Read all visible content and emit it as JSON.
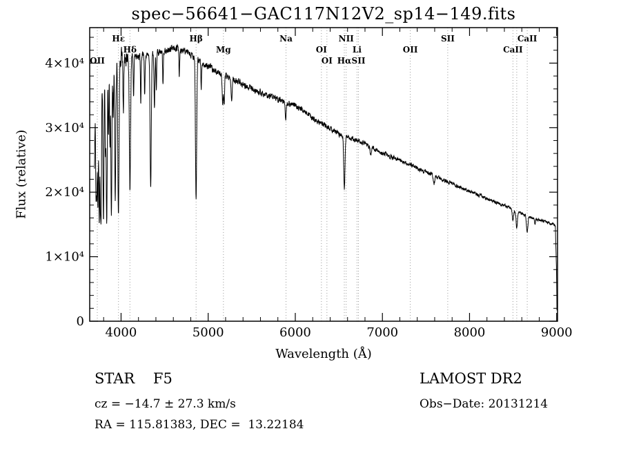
{
  "footer": {
    "class_label": "STAR    F5",
    "survey": "LAMOST DR2",
    "cz": "cz = −14.7 ± 27.3 km/s",
    "obs_date": "Obs−Date: 20131214",
    "coords": "RA = 115.81383, DEC =  13.22184"
  },
  "chart_data": {
    "type": "line",
    "title": "spec−56641−GAC117N12V2_sp14−149.fits",
    "xlabel": "Wavelength (Å)",
    "ylabel": "Flux (relative)",
    "xlim": [
      3640,
      9010
    ],
    "ylim": [
      0,
      45500
    ],
    "line_color": "#000000",
    "marker_line_color": "#999999",
    "grid": false,
    "xticks": {
      "major": [
        4000,
        5000,
        6000,
        7000,
        8000,
        9000
      ],
      "labels": [
        "4000",
        "5000",
        "6000",
        "7000",
        "8000",
        "9000"
      ],
      "minor_step": 200
    },
    "yticks": {
      "major": [
        0,
        10000,
        20000,
        30000,
        40000
      ],
      "labels": [
        "0",
        "1×10⁴",
        "2×10⁴",
        "3×10⁴",
        "4×10⁴"
      ],
      "minor_step": 2000
    },
    "wl_start": 3695,
    "wl_end": 9004,
    "sample_step": 2,
    "continuum_points": [
      [
        3692,
        20000
      ],
      [
        3706,
        36500
      ],
      [
        3800,
        38200
      ],
      [
        3900,
        39600
      ],
      [
        4000,
        40600
      ],
      [
        4150,
        41000
      ],
      [
        4300,
        41300
      ],
      [
        4500,
        41900
      ],
      [
        4650,
        42300
      ],
      [
        4800,
        41400
      ],
      [
        4950,
        39900
      ],
      [
        5100,
        38700
      ],
      [
        5250,
        37700
      ],
      [
        5400,
        36700
      ],
      [
        5600,
        35400
      ],
      [
        5800,
        34400
      ],
      [
        6000,
        33400
      ],
      [
        6100,
        32600
      ],
      [
        6250,
        31000
      ],
      [
        6400,
        29800
      ],
      [
        6550,
        28700
      ],
      [
        6700,
        28000
      ],
      [
        6850,
        27200
      ],
      [
        7000,
        26000
      ],
      [
        7150,
        25200
      ],
      [
        7300,
        24400
      ],
      [
        7450,
        23400
      ],
      [
        7600,
        22500
      ],
      [
        7750,
        21600
      ],
      [
        7900,
        20700
      ],
      [
        8050,
        19800
      ],
      [
        8200,
        19000
      ],
      [
        8350,
        18200
      ],
      [
        8500,
        17300
      ],
      [
        8650,
        16400
      ],
      [
        8800,
        15700
      ],
      [
        8930,
        15200
      ],
      [
        8985,
        14900
      ],
      [
        8998,
        8000
      ],
      [
        9004,
        400
      ]
    ],
    "absorption_lines": [
      {
        "center": 3712,
        "sigma": 5,
        "depth": 0.48
      },
      {
        "center": 3722,
        "sigma": 4,
        "depth": 0.4
      },
      {
        "center": 3734,
        "sigma": 5,
        "depth": 0.52
      },
      {
        "center": 3750,
        "sigma": 5,
        "depth": 0.6
      },
      {
        "center": 3762,
        "sigma": 4,
        "depth": 0.38
      },
      {
        "center": 3771,
        "sigma": 5,
        "depth": 0.55
      },
      {
        "center": 3798,
        "sigma": 6,
        "depth": 0.58
      },
      {
        "center": 3820,
        "sigma": 4,
        "depth": 0.3
      },
      {
        "center": 3835,
        "sigma": 6,
        "depth": 0.62
      },
      {
        "center": 3856,
        "sigma": 4,
        "depth": 0.28
      },
      {
        "center": 3872,
        "sigma": 4,
        "depth": 0.3
      },
      {
        "center": 3889,
        "sigma": 6,
        "depth": 0.6
      },
      {
        "center": 3910,
        "sigma": 4,
        "depth": 0.22
      },
      {
        "center": 3933,
        "sigma": 6,
        "depth": 0.52
      },
      {
        "center": 3970,
        "sigma": 7,
        "depth": 0.58
      },
      {
        "center": 4026,
        "sigma": 4,
        "depth": 0.2
      },
      {
        "center": 4102,
        "sigma": 7,
        "depth": 0.5
      },
      {
        "center": 4144,
        "sigma": 4,
        "depth": 0.16
      },
      {
        "center": 4226,
        "sigma": 4,
        "depth": 0.18
      },
      {
        "center": 4271,
        "sigma": 4,
        "depth": 0.15
      },
      {
        "center": 4340,
        "sigma": 7,
        "depth": 0.5
      },
      {
        "center": 4383,
        "sigma": 5,
        "depth": 0.2
      },
      {
        "center": 4405,
        "sigma": 4,
        "depth": 0.14
      },
      {
        "center": 4481,
        "sigma": 4,
        "depth": 0.12
      },
      {
        "center": 4668,
        "sigma": 4,
        "depth": 0.1
      },
      {
        "center": 4861,
        "sigma": 7,
        "depth": 0.54
      },
      {
        "center": 4920,
        "sigma": 4,
        "depth": 0.1
      },
      {
        "center": 5167,
        "sigma": 6,
        "depth": 0.12
      },
      {
        "center": 5183,
        "sigma": 5,
        "depth": 0.12
      },
      {
        "center": 5270,
        "sigma": 6,
        "depth": 0.1
      },
      {
        "center": 5890,
        "sigma": 5,
        "depth": 0.09
      },
      {
        "center": 6563,
        "sigma": 7,
        "depth": 0.29
      },
      {
        "center": 6867,
        "sigma": 8,
        "depth": 0.05
      },
      {
        "center": 7594,
        "sigma": 8,
        "depth": 0.05
      },
      {
        "center": 8498,
        "sigma": 7,
        "depth": 0.1
      },
      {
        "center": 8542,
        "sigma": 8,
        "depth": 0.15
      },
      {
        "center": 8662,
        "sigma": 8,
        "depth": 0.15
      },
      {
        "center": 8750,
        "sigma": 5,
        "depth": 0.06
      }
    ],
    "noise": {
      "seed": 20131214,
      "blue_limit": 4120,
      "blue_amp": 0.03,
      "base_amp": 0.011
    },
    "markers": [
      {
        "label": "OII",
        "wl": 3727,
        "row": 3
      },
      {
        "label": "Hε",
        "wl": 3970,
        "row": 1
      },
      {
        "label": "Hδ",
        "wl": 4102,
        "row": 2
      },
      {
        "label": "Hβ",
        "wl": 4861,
        "row": 1
      },
      {
        "label": "Mg",
        "wl": 5175,
        "row": 2
      },
      {
        "label": "Na",
        "wl": 5893,
        "row": 1
      },
      {
        "label": "OI",
        "wl": 6300,
        "row": 2
      },
      {
        "label": "OI",
        "wl": 6363,
        "row": 3
      },
      {
        "label": "NII",
        "wl": 6584,
        "row": 1
      },
      {
        "label": "Hα",
        "wl": 6563,
        "row": 3
      },
      {
        "label": "Li",
        "wl": 6708,
        "row": 2
      },
      {
        "label": "SII",
        "wl": 6725,
        "row": 3
      },
      {
        "label": "OII",
        "wl": 7320,
        "row": 2
      },
      {
        "label": "SII",
        "wl": 7750,
        "row": 1
      },
      {
        "label": "CaII",
        "wl": 8498,
        "row": 2
      },
      {
        "label": "",
        "wl": 8542,
        "row": 0
      },
      {
        "label": "CaII",
        "wl": 8662,
        "row": 1
      }
    ]
  }
}
